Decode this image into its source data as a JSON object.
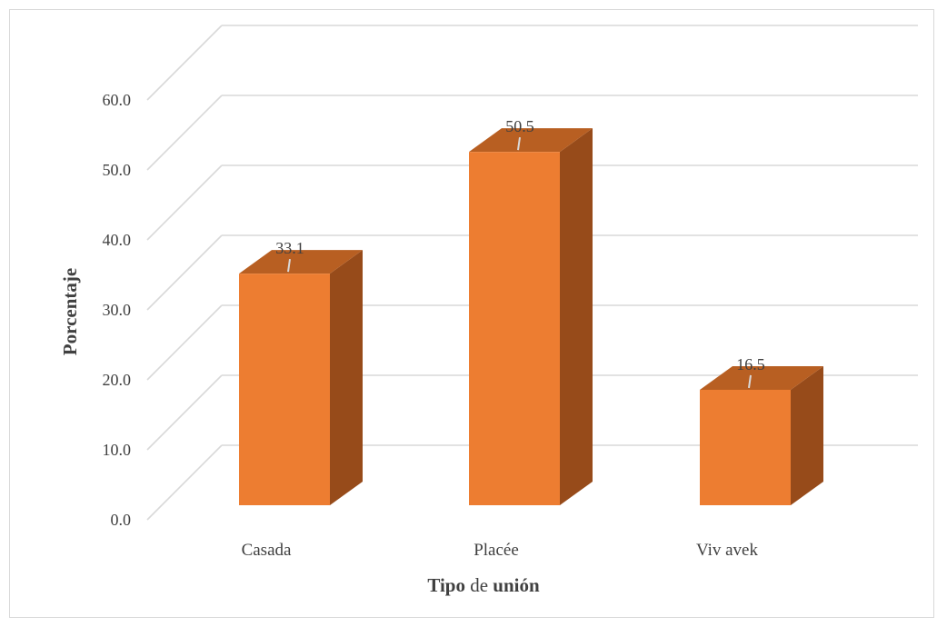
{
  "chart_data": {
    "type": "bar",
    "categories": [
      "Casada",
      "Placée",
      "Viv avek"
    ],
    "values": [
      33.1,
      50.5,
      16.5
    ],
    "data_labels": [
      "33.1",
      "50.5",
      "16.5"
    ],
    "xlabel": {
      "part1": "Tipo",
      "part2": " de ",
      "part3": "unión"
    },
    "ylabel": "Porcentaje",
    "ylim": [
      0,
      60
    ],
    "yticks": [
      "0.0",
      "10.0",
      "20.0",
      "30.0",
      "40.0",
      "50.0",
      "60.0"
    ],
    "grid": true,
    "style": "3d-column",
    "colors": {
      "front": "#ED7D31",
      "top": "#B85F22",
      "side": "#974B1A",
      "grid": "#d9d9d9",
      "text": "#404040"
    }
  }
}
